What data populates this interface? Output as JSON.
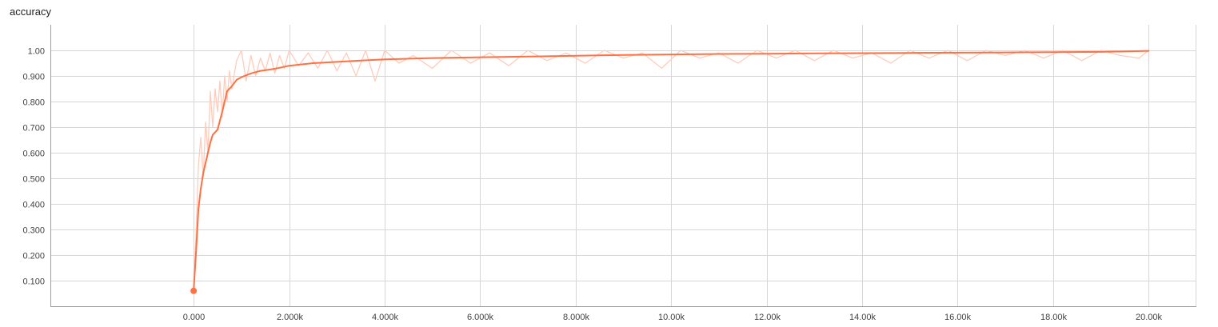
{
  "chart_data": {
    "type": "line",
    "title": "accuracy",
    "xlabel": "",
    "ylabel": "",
    "xlim": [
      -3000,
      21000
    ],
    "ylim": [
      0.0,
      1.1
    ],
    "grid": true,
    "legend": "none",
    "x_ticks": [
      0,
      2000,
      4000,
      6000,
      8000,
      10000,
      12000,
      14000,
      16000,
      18000,
      20000
    ],
    "x_tick_labels": [
      "0.000",
      "2.000k",
      "4.000k",
      "6.000k",
      "8.000k",
      "10.00k",
      "12.00k",
      "14.00k",
      "16.00k",
      "18.00k",
      "20.00k"
    ],
    "y_ticks": [
      0.1,
      0.2,
      0.3,
      0.4,
      0.5,
      0.6,
      0.7,
      0.8,
      0.9,
      1.0
    ],
    "y_tick_labels": [
      "0.100",
      "0.200",
      "0.300",
      "0.400",
      "0.500",
      "0.600",
      "0.700",
      "0.800",
      "0.900",
      "1.00"
    ],
    "colors": {
      "smoothed": "#ff7043",
      "raw": "#ffccbc"
    },
    "series": [
      {
        "style": "smoothed",
        "x": [
          0,
          50,
          100,
          150,
          200,
          300,
          350,
          400,
          500,
          600,
          700,
          800,
          900,
          1000,
          1200,
          1400,
          1600,
          1800,
          2000,
          2500,
          3000,
          3500,
          4000,
          5000,
          6000,
          7000,
          8000,
          9000,
          10000,
          11000,
          12000,
          13000,
          14000,
          15000,
          16000,
          17000,
          18000,
          19000,
          20000
        ],
        "y": [
          0.06,
          0.21,
          0.38,
          0.46,
          0.52,
          0.6,
          0.64,
          0.67,
          0.69,
          0.76,
          0.84,
          0.86,
          0.885,
          0.895,
          0.91,
          0.92,
          0.925,
          0.932,
          0.94,
          0.95,
          0.955,
          0.96,
          0.965,
          0.97,
          0.973,
          0.976,
          0.979,
          0.982,
          0.984,
          0.986,
          0.987,
          0.988,
          0.989,
          0.99,
          0.991,
          0.992,
          0.993,
          0.994,
          0.998
        ]
      },
      {
        "style": "raw",
        "x": [
          0,
          50,
          100,
          150,
          200,
          250,
          300,
          350,
          400,
          450,
          500,
          550,
          600,
          650,
          700,
          750,
          800,
          900,
          1000,
          1100,
          1200,
          1300,
          1400,
          1500,
          1600,
          1700,
          1800,
          1900,
          2000,
          2200,
          2400,
          2600,
          2800,
          3000,
          3200,
          3400,
          3600,
          3800,
          4000,
          4300,
          4600,
          5000,
          5400,
          5800,
          6200,
          6600,
          7000,
          7400,
          7800,
          8200,
          8600,
          9000,
          9400,
          9800,
          10200,
          10600,
          11000,
          11400,
          11800,
          12200,
          12600,
          13000,
          13400,
          13800,
          14200,
          14600,
          15000,
          15400,
          15800,
          16200,
          16600,
          17000,
          17400,
          17800,
          18200,
          18600,
          19000,
          19400,
          19800,
          20000
        ],
        "y": [
          0.06,
          0.28,
          0.55,
          0.66,
          0.5,
          0.72,
          0.6,
          0.84,
          0.7,
          0.85,
          0.76,
          0.88,
          0.74,
          0.9,
          0.8,
          0.92,
          0.85,
          0.96,
          1.0,
          0.88,
          0.98,
          0.9,
          0.97,
          0.92,
          0.99,
          0.91,
          0.98,
          0.93,
          1.0,
          0.94,
          0.99,
          0.93,
          1.0,
          0.92,
          0.99,
          0.9,
          1.0,
          0.88,
          1.0,
          0.95,
          0.98,
          0.93,
          1.0,
          0.95,
          0.99,
          0.94,
          1.0,
          0.96,
          0.99,
          0.95,
          1.0,
          0.97,
          0.99,
          0.93,
          1.0,
          0.97,
          0.99,
          0.95,
          1.0,
          0.97,
          1.0,
          0.96,
          1.0,
          0.97,
          0.99,
          0.95,
          1.0,
          0.97,
          1.0,
          0.96,
          1.0,
          0.98,
          1.0,
          0.97,
          1.0,
          0.96,
          1.0,
          0.98,
          0.97,
          1.0
        ]
      }
    ]
  }
}
